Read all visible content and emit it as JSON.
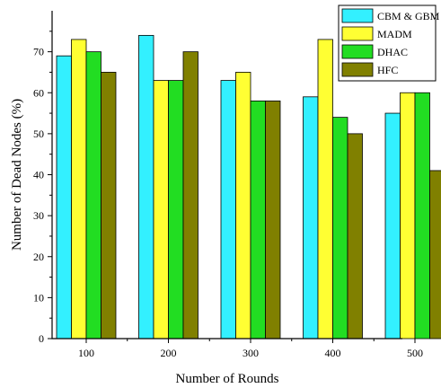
{
  "chart_data": {
    "type": "bar",
    "title": "",
    "xlabel": "Number of Rounds",
    "ylabel": "Number of Dead Nodes (%)",
    "categories": [
      "100",
      "200",
      "300",
      "400",
      "500"
    ],
    "series": [
      {
        "name": "CBM & GBM",
        "color": "#33f0ff",
        "values": [
          69,
          74,
          63,
          59,
          55
        ]
      },
      {
        "name": "MADM",
        "color": "#ffff33",
        "values": [
          73,
          63,
          65,
          73,
          60
        ]
      },
      {
        "name": "DHAC",
        "color": "#22dd22",
        "values": [
          70,
          63,
          58,
          54,
          60
        ]
      },
      {
        "name": "HFC",
        "color": "#808000",
        "values": [
          65,
          70,
          58,
          50,
          41
        ]
      }
    ],
    "ylim": [
      0,
      80
    ],
    "yticks": [
      0,
      10,
      20,
      30,
      40,
      50,
      60,
      70
    ],
    "grid": false,
    "legend_position": "top-right"
  }
}
